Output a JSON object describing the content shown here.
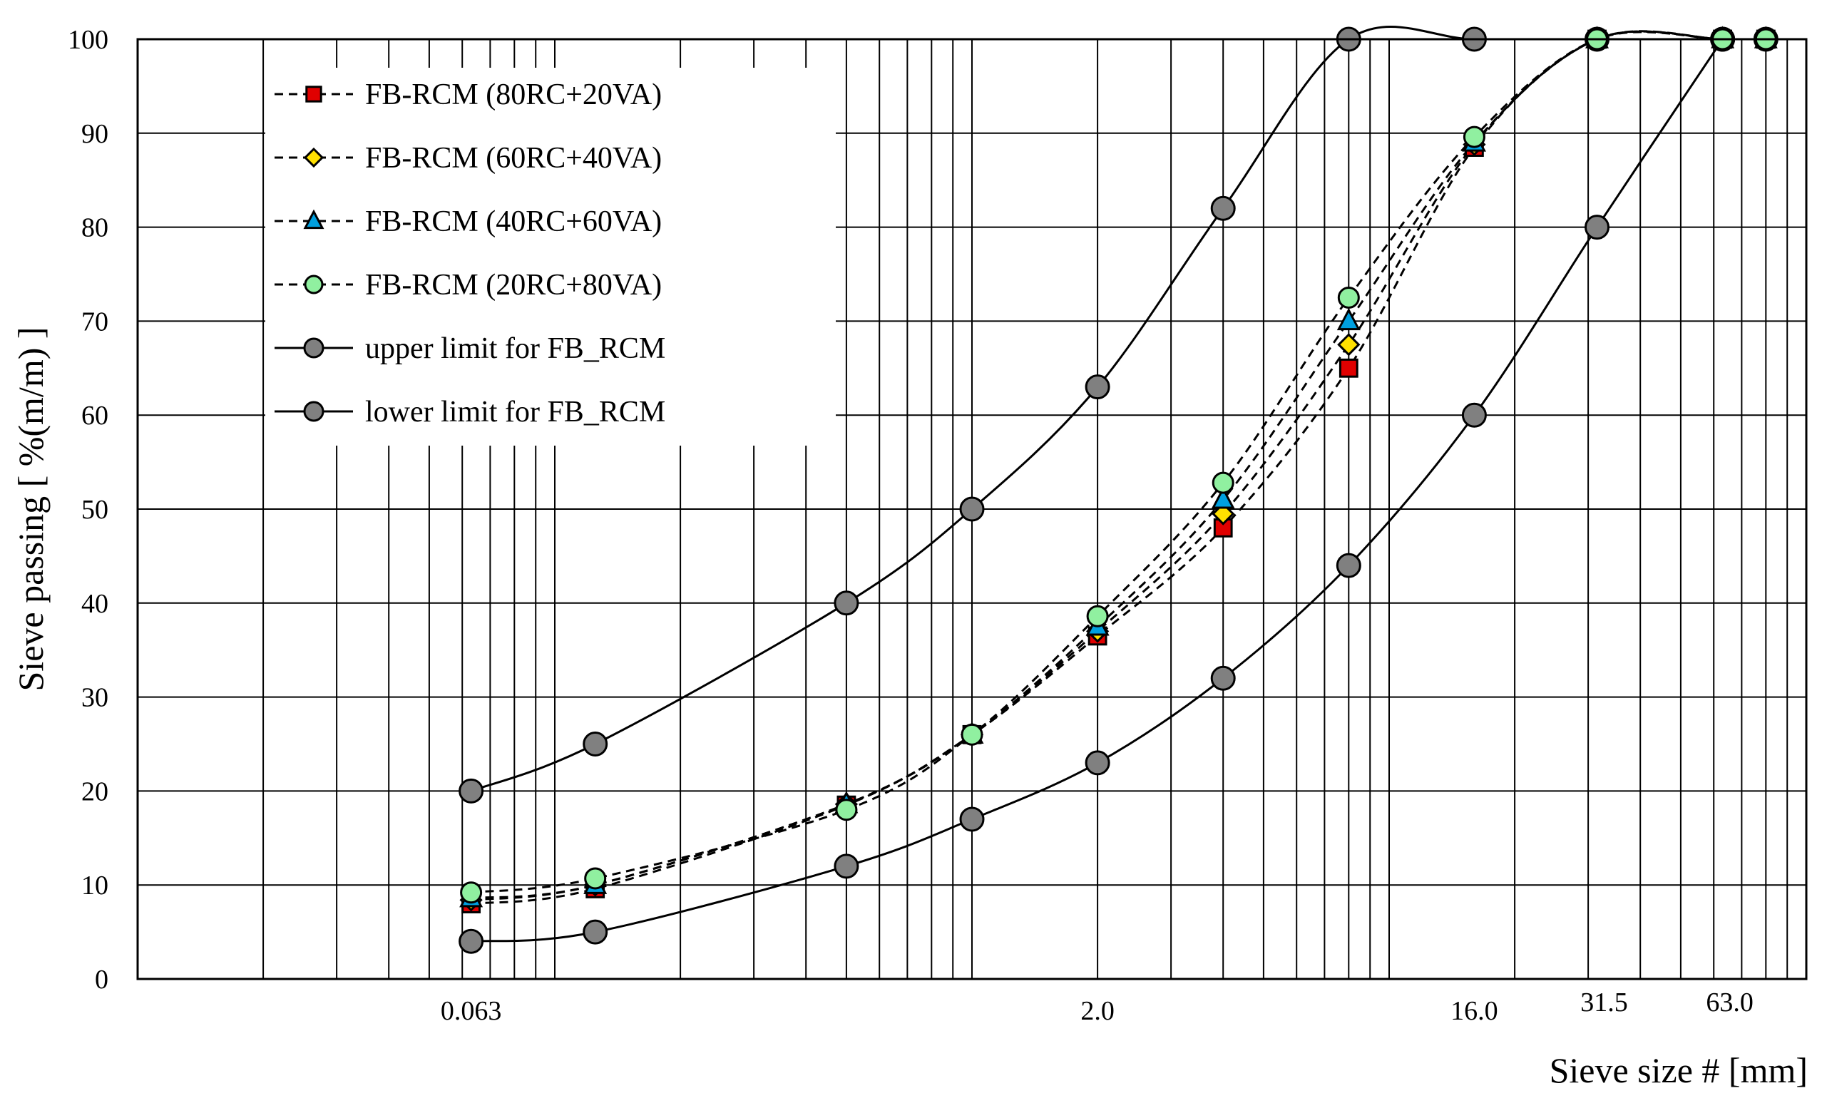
{
  "chart_data": {
    "type": "line",
    "title": "",
    "xlabel": "Sieve size # [mm]",
    "ylabel": "Sieve passing [ %(m/m) ]",
    "x_scale": "log",
    "xlim": [
      0.01,
      100
    ],
    "ylim": [
      0,
      100
    ],
    "y_ticks": [
      0,
      10,
      20,
      30,
      40,
      50,
      60,
      70,
      80,
      90,
      100
    ],
    "x_tick_labels": [
      {
        "value": 0.063,
        "label": "0.063"
      },
      {
        "value": 2.0,
        "label": "2.0"
      },
      {
        "value": 16.0,
        "label": "16.0"
      },
      {
        "value": 31.5,
        "label": "31.5"
      },
      {
        "value": 63.0,
        "label": "63.0"
      }
    ],
    "grid": true,
    "legend_position": "top-left",
    "series": [
      {
        "name": "FB-RCM (80RC+20VA)",
        "style": "dashed",
        "marker": "square",
        "color": "#e00000",
        "x": [
          0.063,
          0.125,
          0.5,
          1.0,
          2.0,
          4.0,
          8.0,
          16.0,
          31.5,
          63.0,
          80.0
        ],
        "y": [
          8.0,
          9.6,
          18.5,
          26.0,
          36.5,
          48.0,
          65.0,
          88.5,
          100,
          100,
          100
        ]
      },
      {
        "name": "FB-RCM (60RC+40VA)",
        "style": "dashed",
        "marker": "diamond",
        "color": "#ffe000",
        "x": [
          0.063,
          0.125,
          0.5,
          1.0,
          2.0,
          4.0,
          8.0,
          16.0,
          31.5,
          63.0,
          80.0
        ],
        "y": [
          8.4,
          10.0,
          18.6,
          26.0,
          37.0,
          49.5,
          67.5,
          88.8,
          100,
          100,
          100
        ]
      },
      {
        "name": "FB-RCM (40RC+60VA)",
        "style": "dashed",
        "marker": "triangle",
        "color": "#00a0e0",
        "x": [
          0.063,
          0.125,
          0.5,
          1.0,
          2.0,
          4.0,
          8.0,
          16.0,
          31.5,
          63.0,
          80.0
        ],
        "y": [
          8.6,
          10.0,
          18.6,
          26.0,
          37.5,
          51.0,
          70.0,
          89.0,
          100,
          100,
          100
        ]
      },
      {
        "name": "FB-RCM (20RC+80VA)",
        "style": "dashed",
        "marker": "circle",
        "color": "#90f0a0",
        "x": [
          0.063,
          0.125,
          0.5,
          1.0,
          2.0,
          4.0,
          8.0,
          16.0,
          31.5,
          63.0,
          80.0
        ],
        "y": [
          9.2,
          10.7,
          18.0,
          26.0,
          38.6,
          52.8,
          72.5,
          89.6,
          100,
          100,
          100
        ]
      },
      {
        "name": "upper limit for FB_RCM",
        "style": "solid",
        "marker": "circle",
        "color": "#808080",
        "x": [
          0.063,
          0.125,
          0.5,
          1.0,
          2.0,
          4.0,
          8.0,
          16.0,
          31.5,
          63.0,
          80.0
        ],
        "y": [
          20,
          25,
          40,
          50,
          63,
          82,
          100,
          100,
          100,
          100,
          100
        ]
      },
      {
        "name": "lower limit for FB_RCM",
        "style": "solid",
        "marker": "circle",
        "color": "#808080",
        "x": [
          0.063,
          0.125,
          0.5,
          1.0,
          2.0,
          4.0,
          8.0,
          16.0,
          31.5,
          63.0
        ],
        "y": [
          4,
          5,
          12,
          17,
          23,
          32,
          44,
          60,
          80,
          100
        ]
      }
    ]
  }
}
